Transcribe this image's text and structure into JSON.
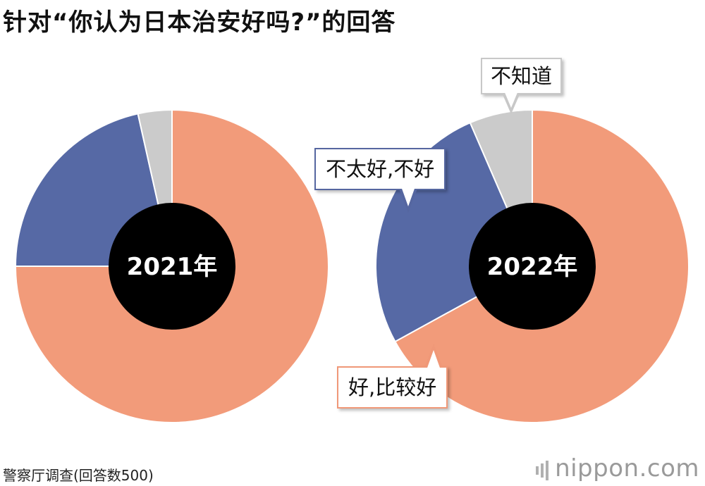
{
  "title": "针对“你认为日本治安好吗?”的回答",
  "colors": {
    "good": "#f29b7a",
    "bad": "#5669a5",
    "dont_know": "#cbcbcb",
    "center": "#000000"
  },
  "chart_data": [
    {
      "type": "pie",
      "year_label": "2021年",
      "slices": [
        {
          "label": "好,比较好",
          "value": 75,
          "color": "#f29b7a"
        },
        {
          "label": "不太好,不好",
          "value": 21.5,
          "color": "#5669a5"
        },
        {
          "label": "不知道",
          "value": 3.5,
          "color": "#cbcbcb"
        }
      ]
    },
    {
      "type": "pie",
      "year_label": "2022年",
      "slices": [
        {
          "label": "好,比较好",
          "value": 67,
          "color": "#f29b7a"
        },
        {
          "label": "不太好,不好",
          "value": 26.5,
          "color": "#5669a5"
        },
        {
          "label": "不知道",
          "value": 6.5,
          "color": "#cbcbcb"
        }
      ]
    }
  ],
  "callouts": {
    "dont_know": "不知道",
    "bad": "不太好,不好",
    "good": "好,比较好"
  },
  "source": "警察厅调查(回答数500)",
  "logo": "nippon.com"
}
